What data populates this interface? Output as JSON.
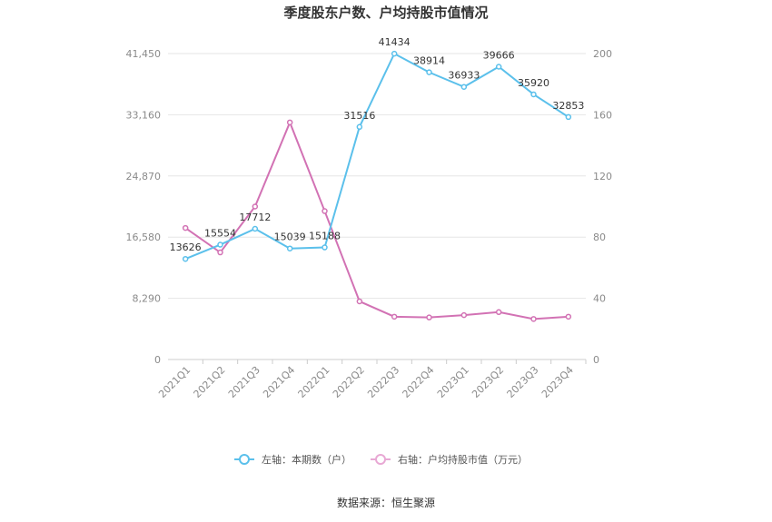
{
  "chart_data": {
    "type": "line",
    "title": "季度股东户数、户均持股市值情况",
    "categories": [
      "2021Q1",
      "2021Q2",
      "2021Q3",
      "2021Q4",
      "2022Q1",
      "2022Q2",
      "2022Q3",
      "2022Q4",
      "2023Q1",
      "2023Q2",
      "2023Q3",
      "2023Q4"
    ],
    "left_axis": {
      "ylim": [
        0,
        41450
      ],
      "ticks": [
        "0",
        "8,290",
        "16,580",
        "24,870",
        "33,160",
        "41,450"
      ]
    },
    "right_axis": {
      "ylim": [
        0,
        200
      ],
      "ticks": [
        "0",
        "40",
        "80",
        "120",
        "160",
        "200"
      ]
    },
    "series": [
      {
        "name": "左轴：本期数（户）",
        "axis": "left",
        "color": "#5bc0eb",
        "values": [
          13626,
          15554,
          17712,
          15039,
          15188,
          31516,
          41434,
          38914,
          36933,
          39666,
          35920,
          32853
        ],
        "labels": [
          "13626",
          "15554",
          "17712",
          "15039",
          "15188",
          "31516",
          "41434",
          "38914",
          "36933",
          "39666",
          "35920",
          "32853"
        ]
      },
      {
        "name": "右轴：户均持股市值（万元）",
        "axis": "right",
        "color": "#d272b4",
        "values": [
          86,
          70,
          100,
          155,
          97,
          38,
          28,
          27.5,
          29,
          31,
          26.5,
          28
        ]
      }
    ],
    "legend_position": "bottom",
    "grid": true
  },
  "source": "数据来源：恒生聚源"
}
